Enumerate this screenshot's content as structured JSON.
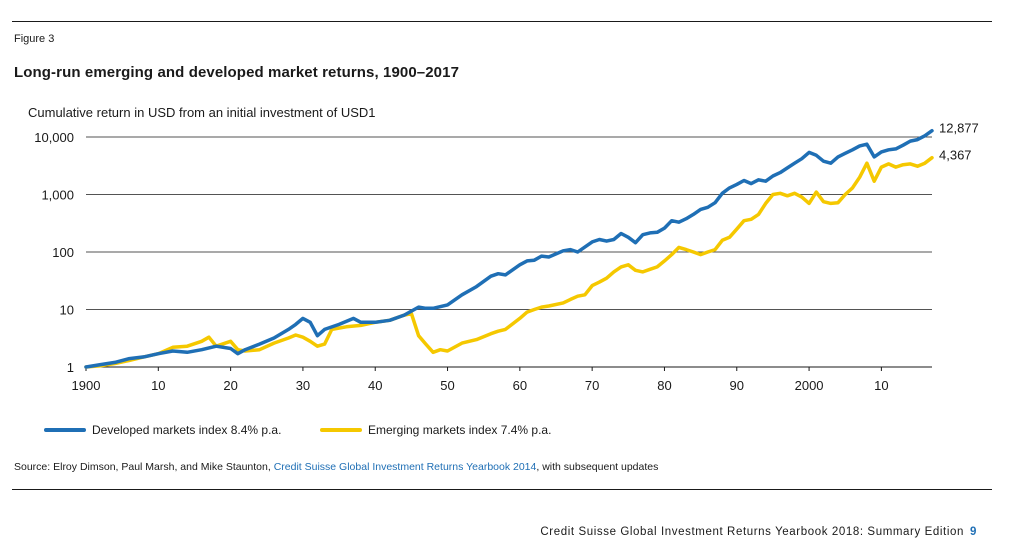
{
  "figure_label": "Figure 3",
  "title": "Long-run emerging and developed market returns, 1900–2017",
  "source": {
    "prefix": "Source: Elroy Dimson, Paul Marsh, and Mike Staunton, ",
    "publication": "Credit Suisse Global Investment Returns Yearbook 2014",
    "suffix": ", with subsequent updates"
  },
  "footer": {
    "text": "Credit Suisse Global Investment Returns Yearbook 2018: Summary Edition",
    "page": "9"
  },
  "colors": {
    "developed": "#1f6fb5",
    "emerging": "#f5c800"
  },
  "chart_data": {
    "type": "line",
    "ylabel": "Cumulative return in USD from an initial investment  of USD1",
    "y_scale": "log",
    "ylim": [
      1,
      10000
    ],
    "xlim": [
      1900,
      2017
    ],
    "y_ticks": [
      {
        "value": 1,
        "label": "1"
      },
      {
        "value": 10,
        "label": "10"
      },
      {
        "value": 100,
        "label": "100"
      },
      {
        "value": 1000,
        "label": "1,000"
      },
      {
        "value": 10000,
        "label": "10,000"
      }
    ],
    "x_ticks": [
      {
        "value": 1900,
        "label": "1900"
      },
      {
        "value": 1910,
        "label": "10"
      },
      {
        "value": 1920,
        "label": "20"
      },
      {
        "value": 1930,
        "label": "30"
      },
      {
        "value": 1940,
        "label": "40"
      },
      {
        "value": 1950,
        "label": "50"
      },
      {
        "value": 1960,
        "label": "60"
      },
      {
        "value": 1970,
        "label": "70"
      },
      {
        "value": 1980,
        "label": "80"
      },
      {
        "value": 1990,
        "label": "90"
      },
      {
        "value": 2000,
        "label": "2000"
      },
      {
        "value": 2010,
        "label": "10"
      }
    ],
    "grid": "horizontal",
    "legend_position": "bottom",
    "series": [
      {
        "name": "Developed markets index 8.4% p.a.",
        "end_label": "12,877",
        "x": [
          1900,
          1902,
          1904,
          1906,
          1908,
          1910,
          1912,
          1914,
          1916,
          1918,
          1920,
          1921,
          1922,
          1924,
          1926,
          1928,
          1929,
          1930,
          1931,
          1932,
          1933,
          1935,
          1937,
          1938,
          1940,
          1942,
          1944,
          1946,
          1947,
          1948,
          1950,
          1952,
          1954,
          1956,
          1957,
          1958,
          1960,
          1961,
          1962,
          1963,
          1964,
          1966,
          1967,
          1968,
          1970,
          1971,
          1972,
          1973,
          1974,
          1975,
          1976,
          1977,
          1978,
          1979,
          1980,
          1981,
          1982,
          1983,
          1984,
          1985,
          1986,
          1987,
          1988,
          1989,
          1990,
          1991,
          1992,
          1993,
          1994,
          1995,
          1996,
          1997,
          1998,
          1999,
          2000,
          2001,
          2002,
          2003,
          2004,
          2005,
          2006,
          2007,
          2008,
          2009,
          2010,
          2011,
          2012,
          2013,
          2014,
          2015,
          2016,
          2017
        ],
        "y": [
          1,
          1.1,
          1.2,
          1.4,
          1.5,
          1.7,
          1.9,
          1.8,
          2.0,
          2.3,
          2.1,
          1.7,
          2.0,
          2.5,
          3.2,
          4.5,
          5.5,
          7,
          6,
          3.5,
          4.5,
          5.5,
          7,
          6,
          6,
          6.5,
          8,
          11,
          10.5,
          10.5,
          12,
          18,
          25,
          38,
          42,
          40,
          60,
          70,
          72,
          85,
          82,
          105,
          110,
          100,
          150,
          165,
          155,
          165,
          210,
          180,
          145,
          200,
          215,
          220,
          260,
          350,
          330,
          380,
          450,
          550,
          600,
          720,
          1050,
          1300,
          1500,
          1750,
          1550,
          1800,
          1700,
          2100,
          2400,
          2900,
          3500,
          4200,
          5400,
          4800,
          3800,
          3500,
          4500,
          5200,
          6000,
          7000,
          7500,
          4500,
          5500,
          6000,
          6200,
          7200,
          8500,
          9000,
          10500,
          12877
        ]
      },
      {
        "name": "Emerging markets index 7.4% p.a.",
        "end_label": "4,367",
        "x": [
          1900,
          1902,
          1904,
          1906,
          1908,
          1910,
          1912,
          1914,
          1916,
          1917,
          1918,
          1920,
          1921,
          1922,
          1924,
          1926,
          1928,
          1929,
          1930,
          1931,
          1932,
          1933,
          1934,
          1936,
          1938,
          1940,
          1942,
          1944,
          1945,
          1946,
          1947,
          1948,
          1949,
          1950,
          1952,
          1954,
          1956,
          1957,
          1958,
          1960,
          1961,
          1962,
          1963,
          1964,
          1966,
          1967,
          1968,
          1969,
          1970,
          1971,
          1972,
          1973,
          1974,
          1975,
          1976,
          1977,
          1978,
          1979,
          1980,
          1981,
          1982,
          1983,
          1984,
          1985,
          1986,
          1987,
          1988,
          1989,
          1990,
          1991,
          1992,
          1993,
          1994,
          1995,
          1996,
          1997,
          1998,
          1999,
          2000,
          2001,
          2002,
          2003,
          2004,
          2005,
          2006,
          2007,
          2008,
          2009,
          2010,
          2011,
          2012,
          2013,
          2014,
          2015,
          2016,
          2017
        ],
        "y": [
          1,
          1.05,
          1.15,
          1.3,
          1.5,
          1.7,
          2.2,
          2.3,
          2.8,
          3.3,
          2.3,
          2.8,
          2.0,
          1.9,
          2.0,
          2.6,
          3.2,
          3.6,
          3.3,
          2.8,
          2.3,
          2.5,
          4.5,
          5.0,
          5.3,
          6.0,
          6.5,
          8.0,
          8.5,
          3.5,
          2.5,
          1.8,
          2.0,
          1.9,
          2.6,
          3.0,
          3.8,
          4.2,
          4.5,
          7,
          9,
          10,
          11,
          11.5,
          13,
          15,
          17,
          18,
          26,
          30,
          35,
          45,
          55,
          60,
          48,
          45,
          50,
          55,
          70,
          90,
          120,
          110,
          100,
          90,
          100,
          110,
          160,
          180,
          250,
          350,
          370,
          450,
          700,
          1000,
          1050,
          950,
          1050,
          900,
          700,
          1100,
          750,
          700,
          720,
          1000,
          1300,
          2000,
          3500,
          1700,
          3000,
          3400,
          3000,
          3300,
          3400,
          3100,
          3500,
          4367
        ]
      }
    ]
  }
}
